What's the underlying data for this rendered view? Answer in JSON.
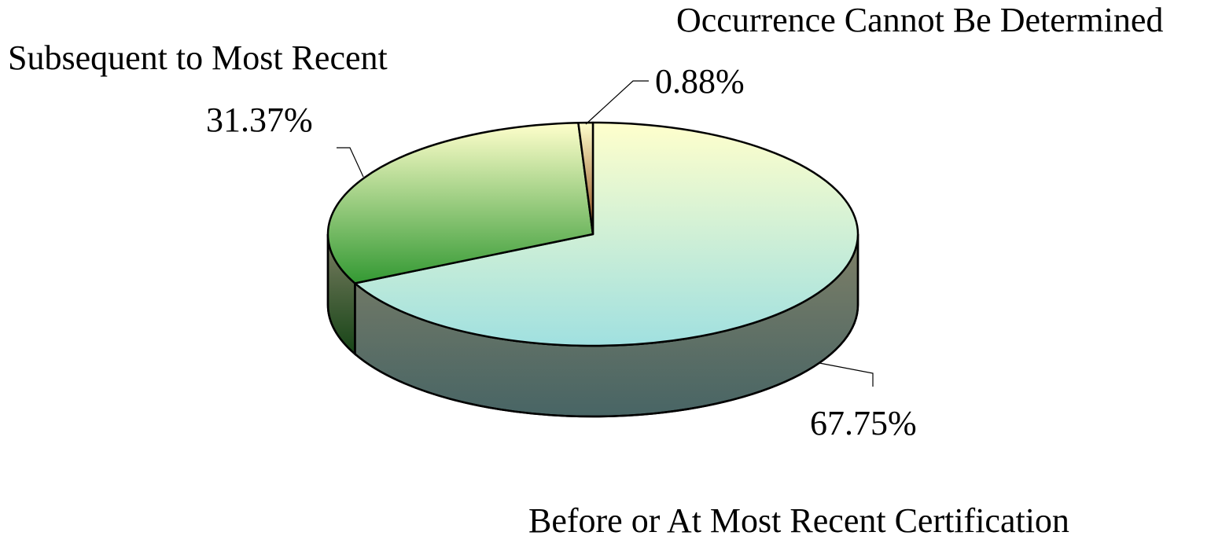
{
  "chart_data": {
    "type": "pie",
    "categories": [
      "Before or At Most Recent Certification",
      "Subsequent to Most Recent",
      "Occurrence Cannot Be Determined"
    ],
    "values": [
      67.75,
      31.37,
      0.88
    ],
    "value_labels": [
      "67.75%",
      "31.37%",
      "0.88%"
    ],
    "colors": [
      "#a0e0e0",
      "#339933",
      "#8b4513"
    ]
  }
}
